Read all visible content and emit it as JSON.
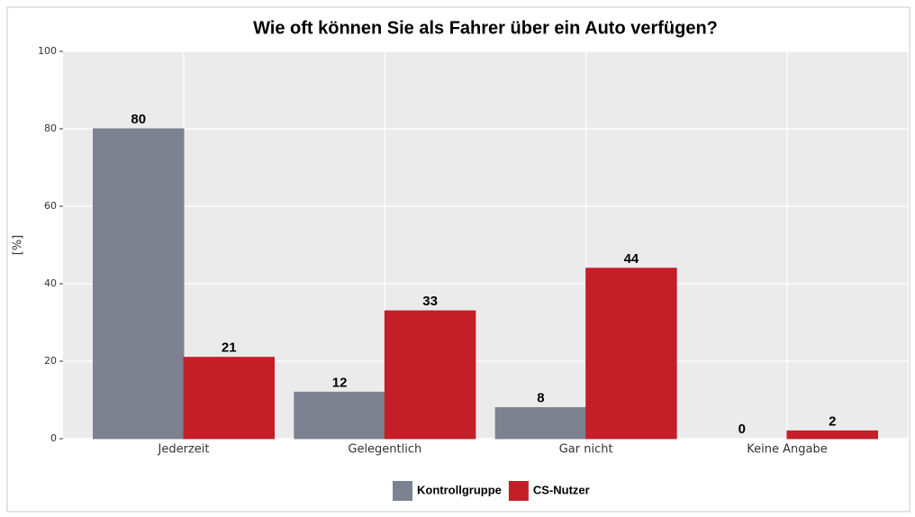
{
  "chart_data": {
    "type": "bar",
    "title": "Wie oft können Sie als Fahrer über ein Auto verfügen?",
    "y_label": "[%]",
    "categories": [
      "Jederzeit",
      "Gelegentlich",
      "Gar nicht",
      "Keine Angabe"
    ],
    "series": [
      {
        "name": "Kontrollgruppe",
        "color": "#7c828f",
        "values": [
          80,
          12,
          8,
          0
        ]
      },
      {
        "name": "CS-Nutzer",
        "color": "#c41e28",
        "values": [
          21,
          33,
          44,
          2
        ]
      }
    ],
    "ylim": [
      0,
      100
    ],
    "yticks": [
      0,
      20,
      40,
      60,
      80,
      100
    ],
    "grid": true,
    "legend": "bottom"
  }
}
